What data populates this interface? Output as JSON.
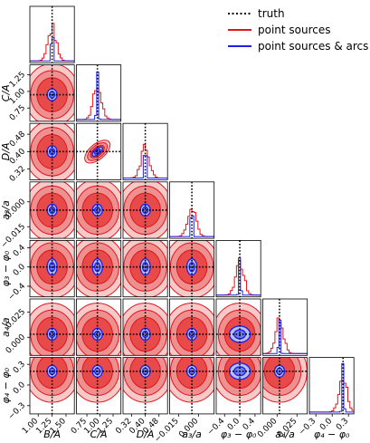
{
  "chart_data": {
    "type": "corner",
    "parameters": [
      {
        "label": "B/A",
        "truth": 1.25,
        "ticks": [
          1.0,
          1.25,
          1.5
        ],
        "tick_labels": [
          "1.00",
          "1.25",
          "1.50"
        ]
      },
      {
        "label": "C/A",
        "truth": 0.95,
        "ticks": [
          0.75,
          1.0,
          1.25
        ],
        "tick_labels": [
          "0.75",
          "1.00",
          "1.25"
        ]
      },
      {
        "label": "D/A",
        "truth": 0.4,
        "ticks": [
          0.32,
          0.4,
          0.48
        ],
        "tick_labels": [
          "0.32",
          "0.40",
          "0.48"
        ]
      },
      {
        "label": "a₃/a",
        "truth": -0.005,
        "ticks": [
          -0.015,
          0.0
        ],
        "tick_labels": [
          "−0.015",
          "0.000"
        ]
      },
      {
        "label": "φ₃ − φ₀",
        "truth": 0.0,
        "ticks": [
          -0.4,
          0.0,
          0.4
        ],
        "tick_labels": [
          "−0.4",
          "0.0",
          "0.4"
        ]
      },
      {
        "label": "a₄/a",
        "truth": 0.003,
        "ticks": [
          0.0,
          0.025
        ],
        "tick_labels": [
          "0.000",
          "0.025"
        ]
      },
      {
        "label": "φ₄ − φ₀",
        "truth": 0.2,
        "ticks": [
          -0.3,
          0.0,
          0.3
        ],
        "tick_labels": [
          "−0.3",
          "0.0",
          "0.3"
        ]
      }
    ],
    "series": [
      {
        "name": "truth",
        "color": "#000000",
        "style": "dotted"
      },
      {
        "name": "point sources",
        "color": "#e0161b",
        "style": "solid"
      },
      {
        "name": "point sources & arcs",
        "color": "#1f1fe6",
        "style": "solid"
      }
    ],
    "legend": "top-right"
  }
}
